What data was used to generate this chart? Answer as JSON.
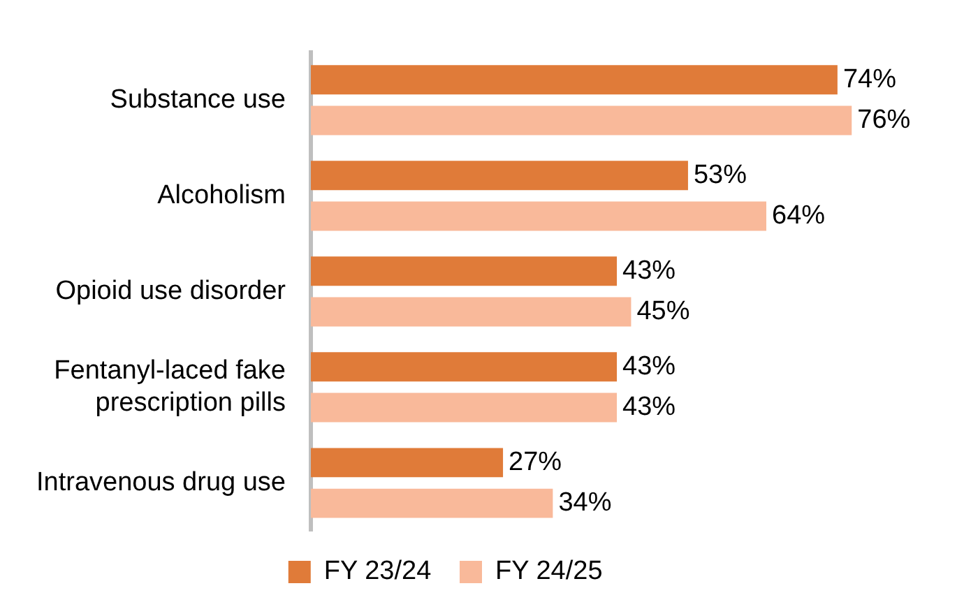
{
  "chart_data": {
    "type": "bar",
    "orientation": "horizontal",
    "categories": [
      "Substance use",
      "Alcoholism",
      "Opioid use disorder",
      "Fentanyl-laced fake prescription pills",
      "Intravenous drug use"
    ],
    "series": [
      {
        "name": "FY 23/24",
        "color": "#e07b39",
        "values": [
          74,
          53,
          43,
          43,
          27
        ],
        "value_labels": [
          "74%",
          "53%",
          "43%",
          "43%",
          "27%"
        ]
      },
      {
        "name": "FY 24/25",
        "color": "#f9b99a",
        "values": [
          76,
          64,
          45,
          43,
          34
        ],
        "value_labels": [
          "76%",
          "64%",
          "45%",
          "43%",
          "34%"
        ]
      }
    ],
    "legend": "bottom",
    "tick_labels": "y"
  }
}
